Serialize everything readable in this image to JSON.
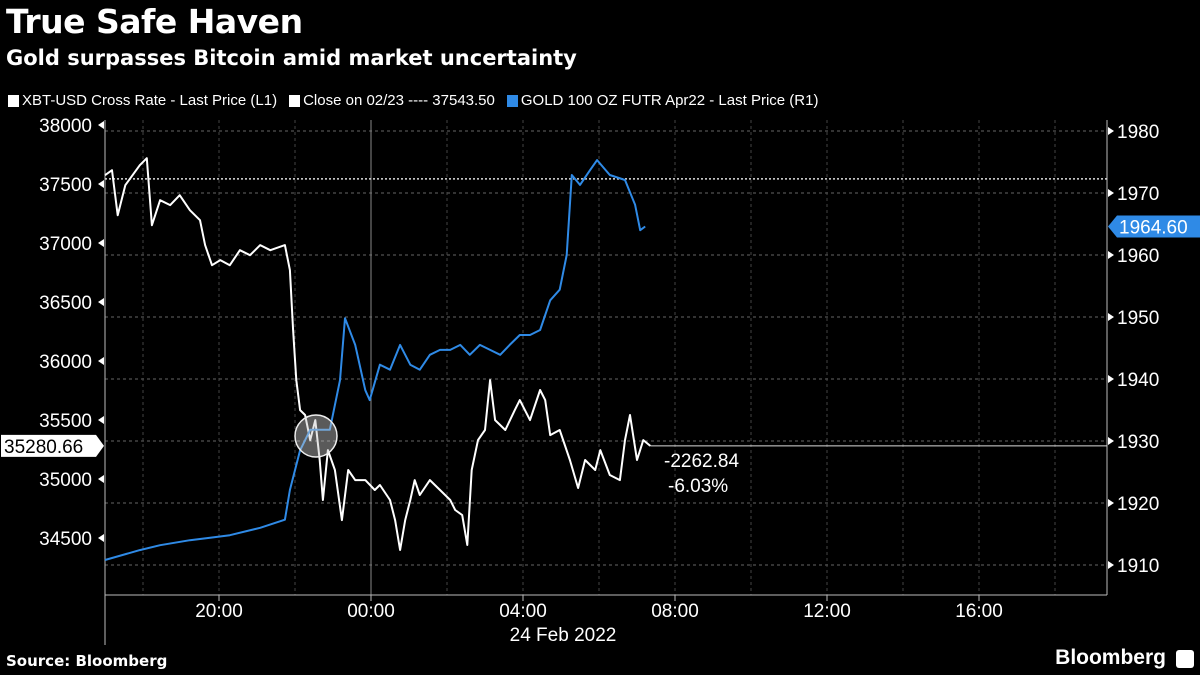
{
  "title": "True Safe Haven",
  "subtitle": "Gold surpasses Bitcoin amid market uncertainty",
  "legend": [
    {
      "label": "XBT-USD Cross Rate - Last Price (L1)",
      "color": "#ffffff"
    },
    {
      "label": "Close on 02/23 ---- 37543.50",
      "color": "#ffffff"
    },
    {
      "label": "GOLD 100 OZ FUTR Apr22 - Last Price (R1)",
      "color": "#2f8ae6"
    }
  ],
  "source": "Source: Bloomberg",
  "logo": "Bloomberg",
  "chart_data": {
    "type": "line",
    "x_date_label": "24 Feb 2022",
    "x_ticks": [
      "20:00",
      "00:00",
      "04:00",
      "08:00",
      "12:00",
      "16:00"
    ],
    "x_range": [
      "2022-02-23 17:00",
      "2022-02-24 19:15"
    ],
    "y_left_ticks": [
      34500,
      35000,
      35500,
      36000,
      36500,
      37000,
      37500,
      38000
    ],
    "y_left_range": [
      34200,
      38050
    ],
    "y_right_ticks": [
      1910,
      1920,
      1930,
      1940,
      1950,
      1960,
      1970,
      1980
    ],
    "y_right_range": [
      1905,
      1980
    ],
    "grid": true,
    "close_reference": {
      "label": "Close on 02/23",
      "value": 37543.5
    },
    "last_left_label": "35280.66",
    "last_right_label": "1964.60",
    "change_abs": "-2262.84",
    "change_pct": "-6.03%",
    "series": [
      {
        "name": "XBT-USD Cross Rate - Last Price (L1)",
        "axis": "left",
        "color": "#ffffff",
        "x": [
          "2022-02-23 17:00",
          "2022-02-23 17:11",
          "2022-02-23 17:20",
          "2022-02-23 17:32",
          "2022-02-23 17:55",
          "2022-02-23 18:06",
          "2022-02-23 18:14",
          "2022-02-23 18:27",
          "2022-02-23 18:43",
          "2022-02-23 18:58",
          "2022-02-23 19:14",
          "2022-02-23 19:30",
          "2022-02-23 19:38",
          "2022-02-23 19:49",
          "2022-02-23 20:02",
          "2022-02-23 20:17",
          "2022-02-23 20:33",
          "2022-02-23 20:49",
          "2022-02-23 21:05",
          "2022-02-23 21:21",
          "2022-02-23 21:44",
          "2022-02-23 21:52",
          "2022-02-23 21:57",
          "2022-02-23 22:02",
          "2022-02-23 22:08",
          "2022-02-23 22:16",
          "2022-02-23 22:24",
          "2022-02-23 22:32",
          "2022-02-23 22:39",
          "2022-02-23 22:44",
          "2022-02-23 22:52",
          "2022-02-23 23:03",
          "2022-02-23 23:14",
          "2022-02-23 23:24",
          "2022-02-23 23:35",
          "2022-02-23 23:51",
          "2022-02-24 00:06",
          "2022-02-24 00:14",
          "2022-02-24 00:30",
          "2022-02-24 00:38",
          "2022-02-24 00:46",
          "2022-02-24 00:54",
          "2022-02-24 01:02",
          "2022-02-24 01:09",
          "2022-02-24 01:17",
          "2022-02-24 01:33",
          "2022-02-24 01:49",
          "2022-02-24 02:05",
          "2022-02-24 02:13",
          "2022-02-24 02:24",
          "2022-02-24 02:32",
          "2022-02-24 02:39",
          "2022-02-24 02:49",
          "2022-02-24 03:00",
          "2022-02-24 03:08",
          "2022-02-24 03:16",
          "2022-02-24 03:32",
          "2022-02-24 03:47",
          "2022-02-24 03:55",
          "2022-02-24 04:11",
          "2022-02-24 04:27",
          "2022-02-24 04:35",
          "2022-02-24 04:43",
          "2022-02-24 04:58",
          "2022-02-24 05:14",
          "2022-02-24 05:27",
          "2022-02-24 05:38",
          "2022-02-24 05:54",
          "2022-02-24 06:02",
          "2022-02-24 06:17",
          "2022-02-24 06:33",
          "2022-02-24 06:41",
          "2022-02-24 06:49",
          "2022-02-24 07:00",
          "2022-02-24 07:10",
          "2022-02-24 07:21"
        ],
        "y": [
          37575,
          37617,
          37236,
          37490,
          37659,
          37719,
          37151,
          37363,
          37321,
          37405,
          37278,
          37193,
          36982,
          36812,
          36855,
          36812,
          36939,
          36897,
          36982,
          36939,
          36982,
          36770,
          36262,
          35838,
          35584,
          35542,
          35330,
          35499,
          35161,
          34822,
          35245,
          35076,
          34652,
          35076,
          34991,
          34991,
          34907,
          34949,
          34822,
          34652,
          34398,
          34652,
          34822,
          34991,
          34864,
          34991,
          34907,
          34822,
          34737,
          34694,
          34441,
          35076,
          35330,
          35415,
          35838,
          35499,
          35415,
          35584,
          35669,
          35499,
          35754,
          35669,
          35372,
          35415,
          35161,
          34924,
          35161,
          35076,
          35245,
          35034,
          34991,
          35330,
          35542,
          35161,
          35330,
          35280.66
        ]
      },
      {
        "name": "GOLD 100 OZ FUTR Apr22 - Last Price (R1)",
        "axis": "right",
        "color": "#2f8ae6",
        "x": [
          "2022-02-23 17:00",
          "2022-02-23 17:55",
          "2022-02-23 18:27",
          "2022-02-23 19:14",
          "2022-02-23 19:46",
          "2022-02-23 20:17",
          "2022-02-23 21:05",
          "2022-02-23 21:44",
          "2022-02-23 21:52",
          "2022-02-23 22:08",
          "2022-02-23 22:24",
          "2022-02-23 22:55",
          "2022-02-23 23:11",
          "2022-02-23 23:19",
          "2022-02-23 23:35",
          "2022-02-23 23:51",
          "2022-02-23 23:58",
          "2022-02-24 00:14",
          "2022-02-24 00:30",
          "2022-02-24 00:46",
          "2022-02-24 01:02",
          "2022-02-24 01:17",
          "2022-02-24 01:33",
          "2022-02-24 01:49",
          "2022-02-24 02:05",
          "2022-02-24 02:21",
          "2022-02-24 02:36",
          "2022-02-24 02:52",
          "2022-02-24 03:08",
          "2022-02-24 03:24",
          "2022-02-24 03:39",
          "2022-02-24 03:55",
          "2022-02-24 04:11",
          "2022-02-24 04:27",
          "2022-02-24 04:43",
          "2022-02-24 04:58",
          "2022-02-24 05:09",
          "2022-02-24 05:17",
          "2022-02-24 05:30",
          "2022-02-24 05:46",
          "2022-02-24 05:57",
          "2022-02-24 06:17",
          "2022-02-24 06:41",
          "2022-02-24 06:57",
          "2022-02-24 07:05",
          "2022-02-24 07:13"
        ],
        "y": [
          1910.8,
          1912.4,
          1913.2,
          1914.0,
          1914.4,
          1914.8,
          1916.0,
          1917.3,
          1922.1,
          1928.5,
          1931.8,
          1931.8,
          1939.8,
          1949.8,
          1945.5,
          1938.2,
          1936.6,
          1942.3,
          1941.5,
          1945.5,
          1942.3,
          1941.5,
          1943.9,
          1944.7,
          1944.7,
          1945.5,
          1943.9,
          1945.5,
          1944.7,
          1943.9,
          1945.5,
          1947.1,
          1947.1,
          1947.9,
          1952.7,
          1954.4,
          1960.0,
          1972.9,
          1971.3,
          1973.7,
          1975.3,
          1972.9,
          1972.1,
          1968.1,
          1964.0,
          1964.6
        ]
      }
    ]
  }
}
